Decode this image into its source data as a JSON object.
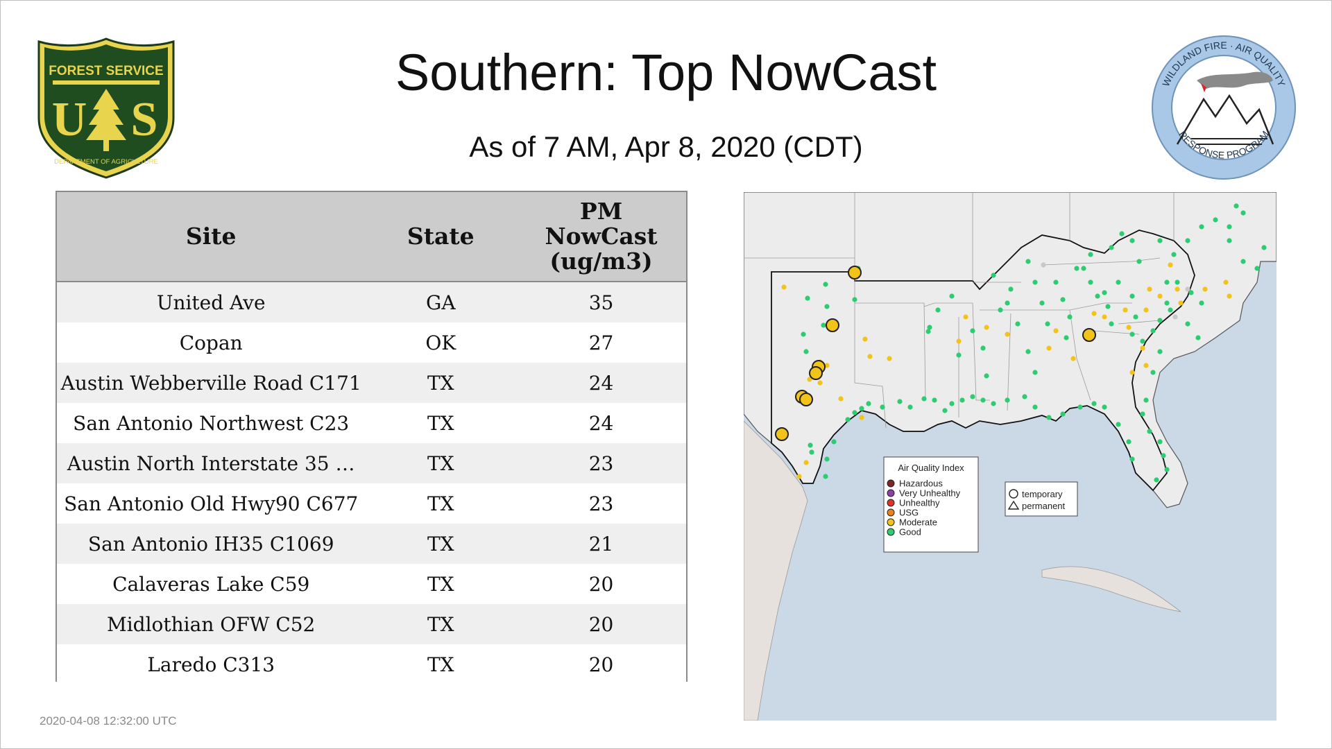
{
  "header": {
    "title": "Southern: Top NowCast",
    "subtitle": "As of  7 AM, Apr  8, 2020 (CDT)"
  },
  "logos": {
    "usfs": {
      "top_text": "FOREST SERVICE",
      "letters": "U S",
      "bottom_text": "DEPARTMENT OF AGRICULTURE"
    },
    "wfaq": {
      "top_text": "WILDLAND FIRE · AIR QUALITY",
      "bottom_text": "RESPONSE PROGRAM"
    }
  },
  "table": {
    "headers": {
      "site": "Site",
      "state": "State",
      "pm": [
        "PM",
        "NowCast",
        "(ug/m3)"
      ]
    },
    "rows": [
      {
        "site": "United Ave",
        "state": "GA",
        "value": "35"
      },
      {
        "site": "Copan",
        "state": "OK",
        "value": "27"
      },
      {
        "site": "Austin Webberville Road C171",
        "state": "TX",
        "value": "24"
      },
      {
        "site": "San Antonio Northwest C23",
        "state": "TX",
        "value": "24"
      },
      {
        "site": "Austin North Interstate 35 …",
        "state": "TX",
        "value": "23"
      },
      {
        "site": "San Antonio Old Hwy90 C677",
        "state": "TX",
        "value": "23"
      },
      {
        "site": "San Antonio IH35 C1069",
        "state": "TX",
        "value": "21"
      },
      {
        "site": "Calaveras Lake C59",
        "state": "TX",
        "value": "20"
      },
      {
        "site": "Midlothian OFW C52",
        "state": "TX",
        "value": "20"
      },
      {
        "site": "Laredo C313",
        "state": "TX",
        "value": "20"
      }
    ]
  },
  "map": {
    "legend": {
      "title": "Air Quality Index",
      "items": [
        {
          "label": "Hazardous",
          "color": "#7e2525"
        },
        {
          "label": "Very Unhealthy",
          "color": "#8e3fa8"
        },
        {
          "label": "Unhealthy",
          "color": "#e0312b"
        },
        {
          "label": "USG",
          "color": "#ef7f1a"
        },
        {
          "label": "Moderate",
          "color": "#f2c318"
        },
        {
          "label": "Good",
          "color": "#2ecc71"
        }
      ]
    },
    "shape_legend": {
      "temporary": "temporary",
      "permanent": "permanent"
    },
    "colors": {
      "ocean": "#cbd8e6",
      "land": "#ececec",
      "good": "#2ecc71",
      "moderate": "#f2c318",
      "no_data": "#c8c8c8"
    }
  },
  "footer": {
    "timestamp": "2020-04-08 12:32:00 UTC"
  }
}
